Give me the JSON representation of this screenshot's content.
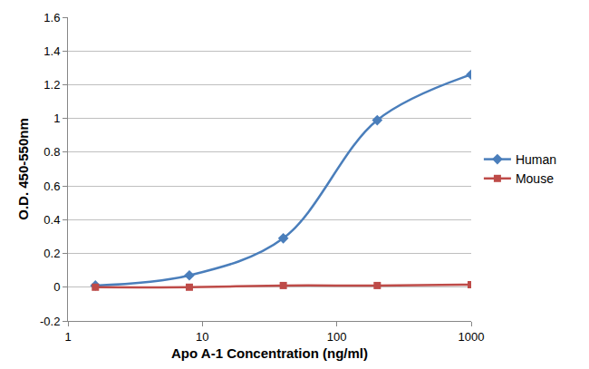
{
  "chart_data": {
    "type": "line",
    "x_label": "Apo A-1 Concentration (ng/ml)",
    "y_label": "O.D. 450-550nm",
    "x": [
      1.6,
      8,
      40,
      200,
      1000
    ],
    "series": [
      {
        "name": "Human",
        "color": "#4a7ebb",
        "marker": "diamond",
        "line_style": "smooth",
        "values": [
          0.01,
          0.07,
          0.29,
          0.99,
          1.26
        ]
      },
      {
        "name": "Mouse",
        "color": "#be4b48",
        "marker": "square",
        "line_style": "smooth",
        "values": [
          0,
          0,
          0.01,
          0.01,
          0.015
        ]
      }
    ],
    "log": "x",
    "xlim": [
      1,
      1000
    ],
    "xticks": [
      1,
      10,
      100,
      1000
    ],
    "ylim": [
      -0.2,
      1.6
    ],
    "yticks": [
      -0.2,
      0,
      0.2,
      0.4,
      0.6,
      0.8,
      1,
      1.2,
      1.4,
      1.6
    ],
    "grid": "y",
    "legend": "right"
  }
}
